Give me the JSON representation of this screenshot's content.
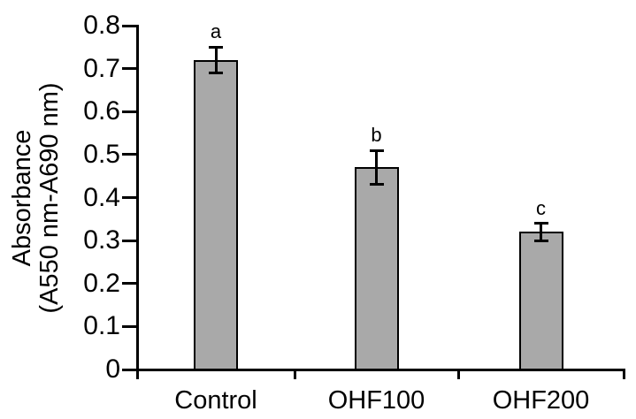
{
  "chart_data": {
    "type": "bar",
    "title": "",
    "categories": [
      "Control",
      "OHF100",
      "OHF200"
    ],
    "values": [
      0.72,
      0.47,
      0.32
    ],
    "errors": [
      0.03,
      0.04,
      0.02
    ],
    "sig_letters": [
      "a",
      "b",
      "c"
    ],
    "ylabel_lines": [
      "Absorbance",
      "(A550 nm-A690 nm)"
    ],
    "xlabel": "",
    "ylim": [
      0,
      0.8
    ],
    "ytick_values": [
      0,
      0.1,
      0.2,
      0.3,
      0.4,
      0.5,
      0.6,
      0.7,
      0.8
    ],
    "ytick_labels": [
      "0",
      "0.1",
      "0.2",
      "0.3",
      "0.4",
      "0.5",
      "0.6",
      "0.7",
      "0.8"
    ],
    "grid": false,
    "legend": "none",
    "bar_color": "#a9a9a9",
    "bar_border_color": "#000000",
    "axis_color": "#000000",
    "text_color": "#000000"
  }
}
